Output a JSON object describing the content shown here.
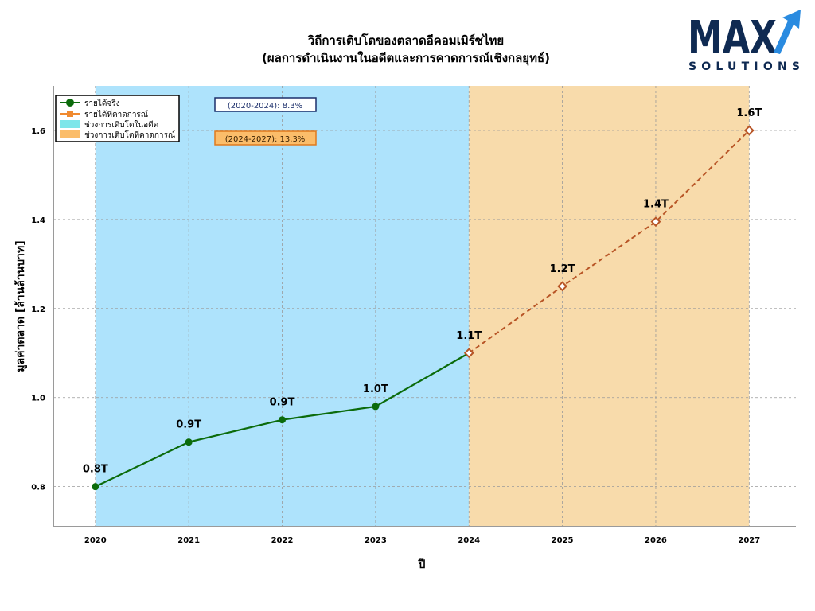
{
  "logo": {
    "word": "MAX",
    "sub": "SOLUTIONS",
    "colors": {
      "navy": "#0f2a52",
      "blue": "#2a8be0"
    }
  },
  "chart_data": {
    "type": "line",
    "title": "วิถีการเติบโตของตลาดอีคอมเมิร์ซไทย",
    "subtitle": "(ผลการดำเนินงานในอดีตและการคาดการณ์เชิงกลยุทธ์)",
    "xlabel": "ปี",
    "ylabel": "มูลค่าตลาด [ล้านล้านบาท]",
    "xlim": [
      2019.55,
      2027.5
    ],
    "ylim": [
      0.71,
      1.7
    ],
    "x_ticks": [
      2020,
      2021,
      2022,
      2023,
      2024,
      2025,
      2026,
      2027
    ],
    "y_ticks": [
      0.8,
      1.0,
      1.2,
      1.4,
      1.6
    ],
    "y_tick_labels": [
      "0.8",
      "1.0",
      "1.2",
      "1.4",
      "1.6"
    ],
    "grid": true,
    "legend_position": "top-left",
    "series": [
      {
        "name": "รายได้จริง",
        "color": "#0b6b0b",
        "x": [
          2020,
          2021,
          2022,
          2023,
          2024
        ],
        "values": [
          0.8,
          0.9,
          0.95,
          0.98,
          1.1
        ],
        "labels": [
          "0.8T",
          "0.9T",
          "0.9T",
          "1.0T",
          "1.1T"
        ]
      },
      {
        "name": "รายได้ที่คาดการณ์",
        "color": "#b85526",
        "x": [
          2024,
          2025,
          2026,
          2027
        ],
        "values": [
          1.1,
          1.25,
          1.395,
          1.6
        ],
        "labels": [
          "1.2T",
          "1.4T",
          "1.6T"
        ]
      }
    ],
    "regions": [
      {
        "name": "ช่วงการเติบโตในอดีต",
        "x_start": 2020,
        "x_end": 2024,
        "color": "#aee3fc"
      },
      {
        "name": "ช่วงการเติบโตที่คาดการณ์",
        "x_start": 2024,
        "x_end": 2027,
        "color": "#f8dbab"
      }
    ],
    "annotations": [
      {
        "text": "(2020-2024): 8.3%",
        "border_color": "#1c2f6b",
        "fill": "#ffffff"
      },
      {
        "text": "(2024-2027): 13.3%",
        "border_color": "#e07a1c",
        "fill": "#fbbd6a"
      }
    ],
    "legend_colors": {
      "actual": "#0b6b0b",
      "forecast": "#f08a30",
      "past_region": "#7de6ea",
      "forecast_region": "#fbbd6a"
    }
  }
}
